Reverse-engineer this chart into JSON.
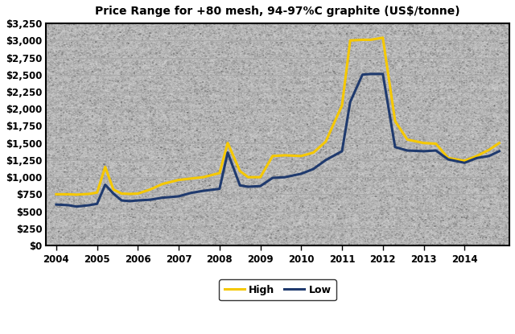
{
  "title": "Price Range for +80 mesh, 94-97%C graphite (US$/tonne)",
  "background_color": "#d8d8d8",
  "grid_color": "#b0b0b0",
  "low_color": "#1f3a6e",
  "high_color": "#f5c800",
  "low_label": "Low",
  "high_label": "High",
  "ylim": [
    0,
    3250
  ],
  "yticks": [
    0,
    250,
    500,
    750,
    1000,
    1250,
    1500,
    1750,
    2000,
    2250,
    2500,
    2750,
    3000,
    3250
  ],
  "x_values": [
    2004.0,
    2004.3,
    2004.5,
    2004.8,
    2005.0,
    2005.2,
    2005.4,
    2005.6,
    2005.8,
    2006.0,
    2006.3,
    2006.6,
    2007.0,
    2007.3,
    2007.6,
    2008.0,
    2008.2,
    2008.5,
    2008.7,
    2009.0,
    2009.3,
    2009.6,
    2010.0,
    2010.3,
    2010.6,
    2011.0,
    2011.2,
    2011.5,
    2011.7,
    2012.0,
    2012.3,
    2012.6,
    2013.0,
    2013.3,
    2013.6,
    2014.0,
    2014.3,
    2014.6,
    2014.85
  ],
  "low_values": [
    600,
    590,
    570,
    590,
    610,
    890,
    760,
    660,
    650,
    660,
    670,
    700,
    720,
    770,
    800,
    830,
    1360,
    880,
    860,
    870,
    990,
    1000,
    1050,
    1120,
    1250,
    1380,
    2100,
    2500,
    2510,
    2510,
    1440,
    1390,
    1380,
    1390,
    1260,
    1210,
    1280,
    1310,
    1380
  ],
  "high_values": [
    750,
    750,
    745,
    755,
    775,
    1150,
    820,
    760,
    755,
    760,
    820,
    900,
    960,
    980,
    1000,
    1060,
    1500,
    1090,
    1000,
    1000,
    1310,
    1320,
    1310,
    1360,
    1520,
    2050,
    3000,
    3010,
    3010,
    3040,
    1820,
    1550,
    1500,
    1490,
    1280,
    1240,
    1310,
    1400,
    1500
  ],
  "xticks": [
    2004,
    2005,
    2006,
    2007,
    2008,
    2009,
    2010,
    2011,
    2012,
    2013,
    2014
  ],
  "xlim": [
    2003.75,
    2015.1
  ],
  "linewidth": 2.2
}
